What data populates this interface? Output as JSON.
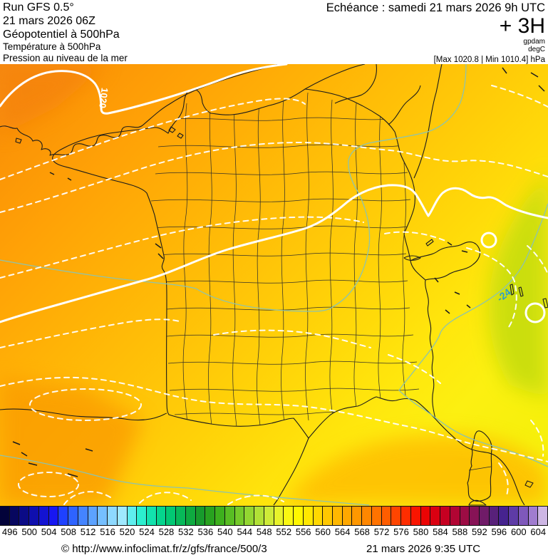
{
  "header": {
    "left_lines": [
      "Run GFS 0.5°",
      "21 mars 2026 06Z",
      "Géopotentiel à 500hPa",
      "Température à 500hPa",
      "Pression au niveau de la mer"
    ],
    "right": {
      "echeance": "Echéance : samedi 21 mars 2026 9h UTC",
      "step": "+ 3H",
      "unit_geopotential": "gpdam",
      "unit_temperature": "degC",
      "pressure_minmax": "[Max 1020.8 | Min 1010.4] hPa"
    }
  },
  "map": {
    "isobar_label": "1020",
    "temperature_label": "-24",
    "colors": {
      "isobar_line": "#ffffff",
      "temperature_line": "#8cc3ae",
      "temperature_label": "#2d9fc9",
      "coastline": "#1b1b1b",
      "field_orange_nw": "#f6890a",
      "field_yellow_se": "#f7f00c",
      "field_green_e": "#c9de10"
    }
  },
  "colorbar": {
    "unit": "gpdam",
    "tick_labels": [
      496,
      500,
      504,
      508,
      512,
      516,
      520,
      524,
      528,
      532,
      536,
      540,
      544,
      548,
      552,
      556,
      560,
      564,
      568,
      572,
      576,
      580,
      584,
      588,
      592,
      596,
      600,
      604
    ],
    "cells": [
      "#03033a",
      "#07075f",
      "#0b0b86",
      "#0f0fae",
      "#1313d2",
      "#1717f2",
      "#1e41ff",
      "#2e63ff",
      "#4484ff",
      "#5ca2ff",
      "#75bfff",
      "#8ed9ff",
      "#9fe9ff",
      "#5feeee",
      "#2cefcf",
      "#12e2ad",
      "#05d58d",
      "#02c873",
      "#07b959",
      "#0eaa40",
      "#179b2c",
      "#28a21f",
      "#3db01d",
      "#58bd23",
      "#75ca2a",
      "#93d631",
      "#b1e136",
      "#ceeb38",
      "#e8f32b",
      "#faf812",
      "#fff700",
      "#ffe800",
      "#ffd800",
      "#ffc800",
      "#ffb800",
      "#ffa800",
      "#ff9800",
      "#ff8700",
      "#ff7300",
      "#ff5d00",
      "#ff4500",
      "#ff2d00",
      "#f91500",
      "#eb0404",
      "#da0011",
      "#c60021",
      "#b10533",
      "#9c0c44",
      "#871356",
      "#701b68",
      "#58217a",
      "#46238f",
      "#5e3ba6",
      "#7f58bb",
      "#a07ccf",
      "#cdb6e4"
    ]
  },
  "footer": {
    "copyright": "© http://www.infoclimat.fr/z/gfs/france/500/3",
    "datetime": "21 mars 2026  9:35 UTC"
  }
}
